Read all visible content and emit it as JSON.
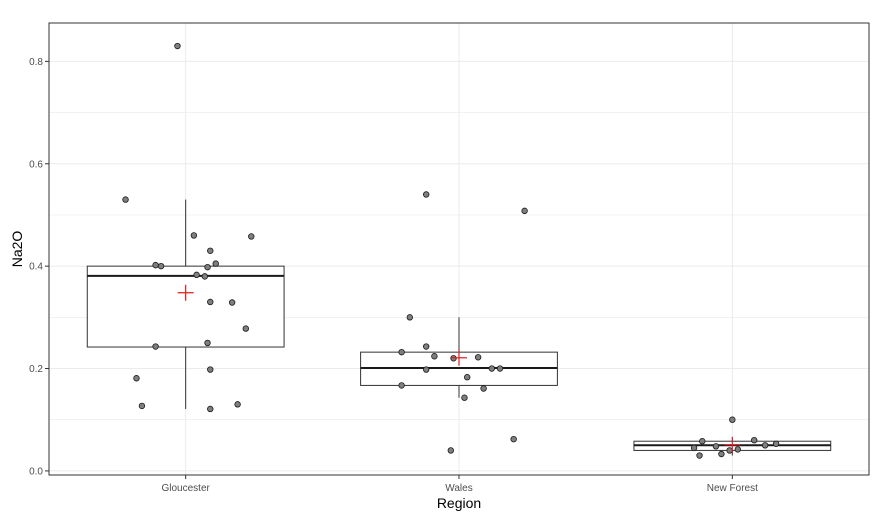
{
  "chart_data": {
    "type": "boxplot",
    "xlabel": "Region",
    "ylabel": "Na2O",
    "ylim": [
      -0.008,
      0.875
    ],
    "y_ticks": [
      0.0,
      0.2,
      0.4,
      0.6,
      0.8
    ],
    "y_tick_labels": [
      "0.0",
      "0.2",
      "0.4",
      "0.6",
      "0.8"
    ],
    "grid": true,
    "colors": {
      "box": "#333333",
      "median": "#1a1a1a",
      "point_fill": "#7f7f7f",
      "mean_marker": "#e31a1c",
      "grid": "#ebebeb"
    },
    "categories": [
      "Gloucester",
      "Wales",
      "New Forest"
    ],
    "boxes": [
      {
        "category": "Gloucester",
        "q1": 0.242,
        "median": 0.381,
        "q3": 0.4,
        "whisker_low": 0.121,
        "whisker_high": 0.53,
        "mean": 0.348,
        "outliers": [
          0.83
        ]
      },
      {
        "category": "Wales",
        "q1": 0.167,
        "median": 0.201,
        "q3": 0.232,
        "whisker_low": 0.143,
        "whisker_high": 0.3,
        "mean": 0.221,
        "outliers": [
          0.54,
          0.508,
          0.062,
          0.04
        ]
      },
      {
        "category": "New Forest",
        "q1": 0.04,
        "median": 0.05,
        "q3": 0.058,
        "whisker_low": 0.03,
        "whisker_high": 0.06,
        "mean": 0.051,
        "outliers": [
          0.1
        ]
      }
    ],
    "points": [
      {
        "category": "Gloucester",
        "values": [
          0.83,
          0.53,
          0.46,
          0.458,
          0.43,
          0.405,
          0.402,
          0.4,
          0.398,
          0.383,
          0.38,
          0.33,
          0.329,
          0.278,
          0.25,
          0.243,
          0.198,
          0.181,
          0.13,
          0.127,
          0.121
        ],
        "jitter": [
          -0.03,
          -0.22,
          0.03,
          0.24,
          0.09,
          0.11,
          -0.11,
          -0.09,
          0.08,
          0.04,
          0.07,
          0.09,
          0.17,
          0.22,
          0.08,
          -0.11,
          0.09,
          -0.18,
          0.19,
          -0.16,
          0.09
        ]
      },
      {
        "category": "Wales",
        "values": [
          0.54,
          0.508,
          0.3,
          0.243,
          0.232,
          0.224,
          0.222,
          0.22,
          0.2,
          0.2,
          0.198,
          0.183,
          0.167,
          0.161,
          0.143,
          0.062,
          0.04
        ],
        "jitter": [
          -0.12,
          0.24,
          -0.18,
          -0.12,
          -0.21,
          -0.09,
          0.07,
          -0.02,
          0.12,
          0.15,
          -0.12,
          0.03,
          -0.21,
          0.09,
          0.02,
          0.2,
          -0.03
        ]
      },
      {
        "category": "New Forest",
        "values": [
          0.1,
          0.06,
          0.058,
          0.053,
          0.05,
          0.048,
          0.045,
          0.042,
          0.04,
          0.033,
          0.03
        ],
        "jitter": [
          0.0,
          0.08,
          -0.11,
          0.16,
          0.12,
          -0.06,
          -0.14,
          0.02,
          -0.01,
          -0.04,
          -0.12
        ]
      }
    ]
  }
}
